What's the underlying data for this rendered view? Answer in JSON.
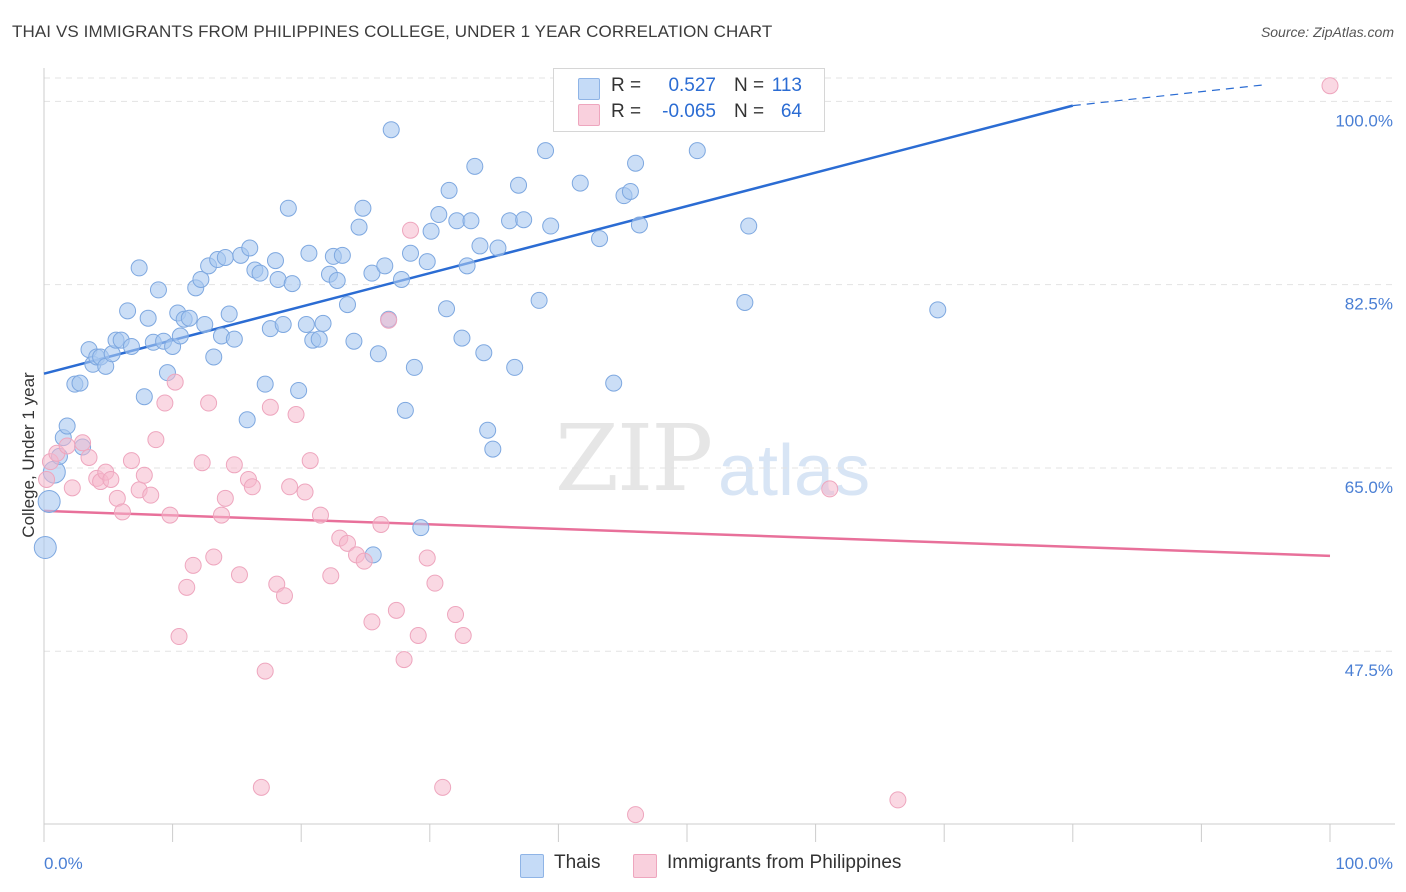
{
  "title": "THAI VS IMMIGRANTS FROM PHILIPPINES COLLEGE, UNDER 1 YEAR CORRELATION CHART",
  "source": "Source: ZipAtlas.com",
  "watermark": {
    "part1": "ZIP",
    "part2": "atlas"
  },
  "legend": {
    "rows": [
      {
        "r_label": "R =",
        "r_value": "0.527",
        "n_label": "N =",
        "n_value": "113",
        "color": "#a9c8f0"
      },
      {
        "r_label": "R =",
        "r_value": "-0.065",
        "n_label": "N =",
        "n_value": "64",
        "color": "#f5b8cc"
      }
    ]
  },
  "bottom_legend": {
    "thais": "Thais",
    "philippines": "Immigrants from Philippines"
  },
  "chart_data": {
    "type": "scatter",
    "ylabel": "College, Under 1 year",
    "xlim": [
      0,
      100
    ],
    "ylim": [
      31,
      103
    ],
    "x_tick_labels": {
      "left": "0.0%",
      "right": "100.0%"
    },
    "y_ticks": [
      {
        "value": 100,
        "label": "100.0%"
      },
      {
        "value": 82.5,
        "label": "82.5%"
      },
      {
        "value": 65,
        "label": "65.0%"
      },
      {
        "value": 47.5,
        "label": "47.5%"
      }
    ],
    "colors": {
      "thais": "#a9c8f0",
      "thais_line": "#2b6cd3",
      "philippines": "#f5b8cc",
      "philippines_line": "#e8709a"
    },
    "series": [
      {
        "name": "Thais",
        "trend": {
          "x0": 0,
          "y0": 74.0,
          "x1": 80,
          "y1": 99.6,
          "dash_to_x": 95,
          "dash_to_y": 101.6
        },
        "points": [
          [
            0.1,
            57.4
          ],
          [
            0.4,
            61.8
          ],
          [
            0.8,
            64.6
          ],
          [
            1.2,
            66.1
          ],
          [
            1.5,
            67.9
          ],
          [
            1.8,
            69.0
          ],
          [
            2.4,
            73.0
          ],
          [
            2.8,
            73.1
          ],
          [
            3,
            67
          ],
          [
            3.5,
            76.3
          ],
          [
            3.8,
            74.9
          ],
          [
            4.1,
            75.6
          ],
          [
            4.4,
            75.6
          ],
          [
            4.8,
            74.7
          ],
          [
            5.3,
            75.9
          ],
          [
            5.6,
            77.2
          ],
          [
            6,
            77.2
          ],
          [
            6.5,
            80.0
          ],
          [
            6.8,
            76.6
          ],
          [
            7.4,
            84.1
          ],
          [
            7.8,
            71.8
          ],
          [
            8.1,
            79.3
          ],
          [
            8.5,
            77.0
          ],
          [
            8.9,
            82.0
          ],
          [
            9.3,
            77.1
          ],
          [
            9.6,
            74.1
          ],
          [
            10,
            76.6
          ],
          [
            10.4,
            79.8
          ],
          [
            10.6,
            77.6
          ],
          [
            10.9,
            79.2
          ],
          [
            11.3,
            79.3
          ],
          [
            11.8,
            82.2
          ],
          [
            12.2,
            83.0
          ],
          [
            12.5,
            78.7
          ],
          [
            12.8,
            84.3
          ],
          [
            13.2,
            75.6
          ],
          [
            13.5,
            84.9
          ],
          [
            13.8,
            77.6
          ],
          [
            14.1,
            85.1
          ],
          [
            14.4,
            79.7
          ],
          [
            14.8,
            77.3
          ],
          [
            15.3,
            85.3
          ],
          [
            15.8,
            69.6
          ],
          [
            16,
            86.0
          ],
          [
            16.4,
            83.9
          ],
          [
            16.8,
            83.6
          ],
          [
            17.2,
            73.0
          ],
          [
            17.6,
            78.3
          ],
          [
            18.0,
            84.8
          ],
          [
            18.2,
            83.0
          ],
          [
            18.6,
            78.7
          ],
          [
            19.0,
            89.8
          ],
          [
            19.3,
            82.6
          ],
          [
            19.8,
            72.4
          ],
          [
            20.4,
            78.7
          ],
          [
            20.6,
            85.5
          ],
          [
            20.9,
            77.2
          ],
          [
            21.4,
            77.3
          ],
          [
            21.7,
            78.8
          ],
          [
            22.2,
            83.5
          ],
          [
            22.5,
            85.2
          ],
          [
            22.8,
            82.9
          ],
          [
            23.2,
            85.3
          ],
          [
            23.6,
            80.6
          ],
          [
            24.1,
            77.1
          ],
          [
            24.5,
            88.0
          ],
          [
            24.8,
            89.8
          ],
          [
            25.5,
            83.6
          ],
          [
            25.6,
            56.7
          ],
          [
            26,
            75.9
          ],
          [
            26.5,
            84.3
          ],
          [
            26.8,
            79.2
          ],
          [
            27.0,
            97.3
          ],
          [
            27.8,
            83.0
          ],
          [
            28.1,
            70.5
          ],
          [
            28.5,
            85.5
          ],
          [
            28.8,
            74.6
          ],
          [
            29.3,
            59.3
          ],
          [
            29.8,
            84.7
          ],
          [
            30.1,
            87.6
          ],
          [
            30.7,
            89.2
          ],
          [
            31.3,
            80.2
          ],
          [
            31.5,
            91.5
          ],
          [
            32.1,
            88.6
          ],
          [
            32.5,
            77.4
          ],
          [
            32.9,
            84.3
          ],
          [
            33.2,
            88.6
          ],
          [
            33.5,
            93.8
          ],
          [
            33.9,
            86.2
          ],
          [
            34.2,
            76.0
          ],
          [
            34.5,
            68.6
          ],
          [
            34.9,
            66.8
          ],
          [
            35.3,
            86.0
          ],
          [
            36.2,
            88.6
          ],
          [
            36.6,
            74.6
          ],
          [
            36.9,
            92.0
          ],
          [
            37.3,
            88.7
          ],
          [
            38.5,
            81.0
          ],
          [
            39,
            95.3
          ],
          [
            39.4,
            88.1
          ],
          [
            41.7,
            92.2
          ],
          [
            43.2,
            86.9
          ],
          [
            44.3,
            73.1
          ],
          [
            45.1,
            91.0
          ],
          [
            45.6,
            91.4
          ],
          [
            46,
            94.1
          ],
          [
            46.3,
            88.2
          ],
          [
            49.1,
            100.3
          ],
          [
            50.8,
            95.3
          ],
          [
            54.5,
            80.8
          ],
          [
            54.8,
            88.1
          ],
          [
            69.5,
            80.1
          ]
        ]
      },
      {
        "name": "Immigrants from Philippines",
        "trend": {
          "x0": 0,
          "y0": 60.9,
          "x1": 100,
          "y1": 56.6
        },
        "points": [
          [
            0.2,
            63.9
          ],
          [
            0.5,
            65.6
          ],
          [
            1,
            66.4
          ],
          [
            1.8,
            67.1
          ],
          [
            2.2,
            63.1
          ],
          [
            3,
            67.4
          ],
          [
            3.5,
            66.0
          ],
          [
            4.1,
            64.0
          ],
          [
            4.4,
            63.7
          ],
          [
            4.8,
            64.6
          ],
          [
            5.2,
            63.9
          ],
          [
            5.7,
            62.1
          ],
          [
            6.1,
            60.8
          ],
          [
            6.8,
            65.7
          ],
          [
            7.4,
            62.9
          ],
          [
            7.8,
            64.3
          ],
          [
            8.3,
            62.4
          ],
          [
            8.7,
            67.7
          ],
          [
            9.4,
            71.2
          ],
          [
            9.8,
            60.5
          ],
          [
            10.2,
            73.2
          ],
          [
            10.5,
            48.9
          ],
          [
            11.1,
            53.6
          ],
          [
            11.6,
            55.7
          ],
          [
            12.3,
            65.5
          ],
          [
            12.8,
            71.2
          ],
          [
            13.2,
            56.5
          ],
          [
            13.8,
            60.5
          ],
          [
            14.1,
            62.1
          ],
          [
            14.8,
            65.3
          ],
          [
            15.2,
            54.8
          ],
          [
            15.9,
            63.9
          ],
          [
            16.2,
            63.2
          ],
          [
            16.9,
            34.5
          ],
          [
            17.2,
            45.6
          ],
          [
            17.6,
            70.8
          ],
          [
            18.1,
            53.9
          ],
          [
            18.7,
            52.8
          ],
          [
            19.1,
            63.2
          ],
          [
            19.6,
            70.1
          ],
          [
            20.3,
            62.7
          ],
          [
            20.7,
            65.7
          ],
          [
            21.5,
            60.5
          ],
          [
            22.3,
            54.7
          ],
          [
            23.0,
            58.3
          ],
          [
            23.6,
            57.8
          ],
          [
            24.3,
            56.7
          ],
          [
            24.9,
            56.1
          ],
          [
            25.5,
            50.3
          ],
          [
            26.2,
            59.6
          ],
          [
            26.8,
            79.1
          ],
          [
            27.4,
            51.4
          ],
          [
            28.0,
            46.7
          ],
          [
            28.5,
            87.7
          ],
          [
            29.1,
            49.0
          ],
          [
            29.8,
            56.4
          ],
          [
            30.4,
            54.0
          ],
          [
            31.0,
            34.5
          ],
          [
            32.0,
            51.0
          ],
          [
            32.6,
            49.0
          ],
          [
            46,
            31.9
          ],
          [
            61.1,
            63.0
          ],
          [
            66.4,
            33.3
          ],
          [
            100.0,
            101.5
          ]
        ]
      }
    ]
  }
}
